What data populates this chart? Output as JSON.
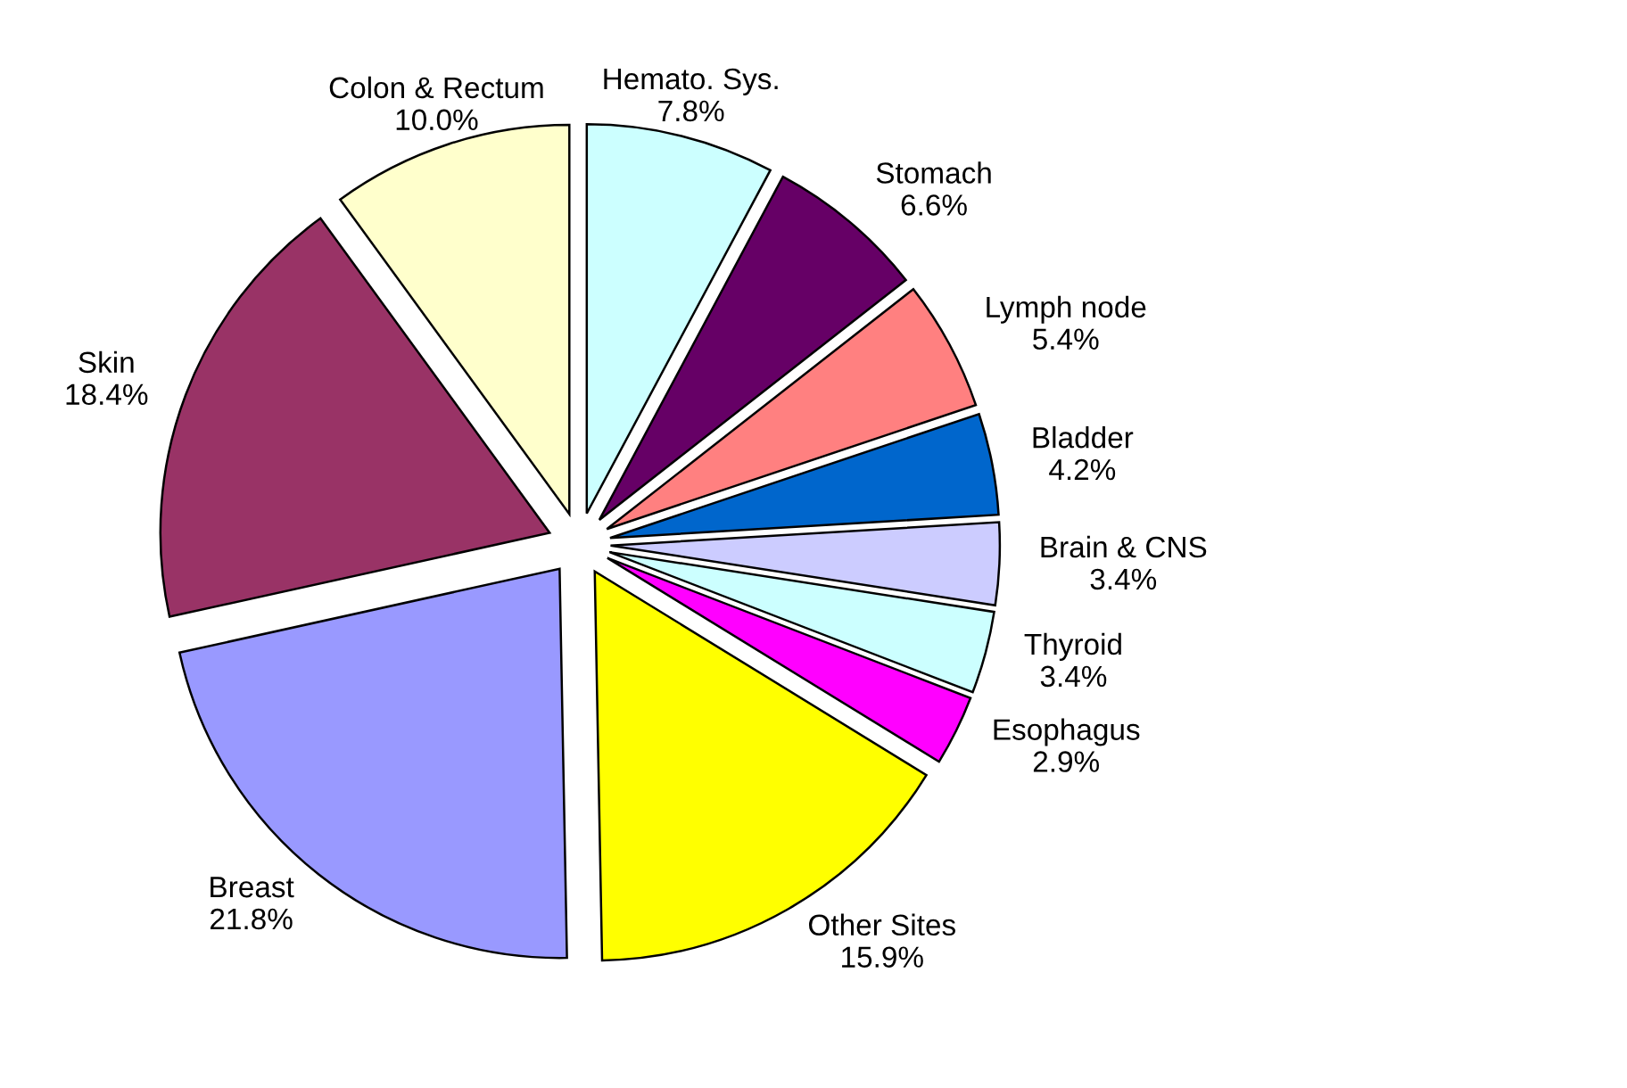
{
  "chart_data": {
    "type": "pie",
    "categories": [
      "Hemato. Sys.",
      "Stomach",
      "Lymph node",
      "Bladder",
      "Brain & CNS",
      "Thyroid",
      "Esophagus",
      "Other Sites",
      "Breast",
      "Skin",
      "Colon & Rectum"
    ],
    "values": [
      7.8,
      6.6,
      5.4,
      4.2,
      3.4,
      3.4,
      2.9,
      15.9,
      21.8,
      18.4,
      10.0
    ],
    "value_labels": [
      "7.8%",
      "6.6%",
      "5.4%",
      "4.2%",
      "3.4%",
      "3.4%",
      "2.9%",
      "15.9%",
      "21.8%",
      "18.4%",
      "10.0%"
    ],
    "colors": [
      "#ccffff",
      "#660066",
      "#ff8080",
      "#0066cc",
      "#ccccff",
      "#ccffff",
      "#ff00ff",
      "#ffff00",
      "#9999ff",
      "#993366",
      "#ffffcc"
    ]
  }
}
